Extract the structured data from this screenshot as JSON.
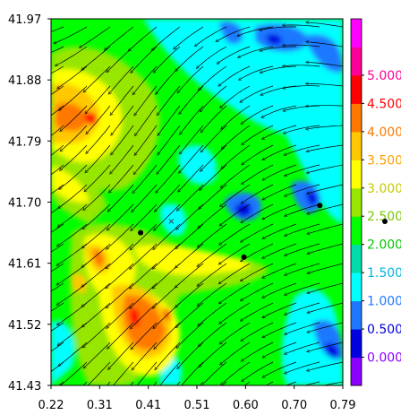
{
  "chart_data": {
    "type": "heatmap",
    "subtype": "filled-contour-with-streamlines",
    "title": "",
    "xlabel": "",
    "ylabel": "",
    "xlim": [
      0.22,
      0.79
    ],
    "ylim": [
      41.43,
      41.97
    ],
    "x_ticks": [
      "0.22",
      "0.31",
      "0.41",
      "0.51",
      "0.60",
      "0.70",
      "0.79"
    ],
    "y_ticks": [
      "41.43",
      "41.52",
      "41.61",
      "41.70",
      "41.79",
      "41.88",
      "41.97"
    ],
    "colorbar": {
      "levels": [
        "0.000",
        "0.500",
        "1.000",
        "1.500",
        "2.000",
        "2.500",
        "3.000",
        "3.500",
        "4.000",
        "4.500",
        "5.000"
      ],
      "level_colors": [
        "#0000e0",
        "#1e78ff",
        "#00ffff",
        "#00dcaa",
        "#00ff00",
        "#96e600",
        "#ffff00",
        "#ffc800",
        "#ff7800",
        "#ff0000",
        "#ff0096"
      ],
      "bottom_color": "#8c00ff",
      "top_color": "#ff00ff",
      "label_colors": [
        "#8c00ff",
        "#0000e0",
        "#1e78ff",
        "#00b4dc",
        "#00c800",
        "#78c800",
        "#c8c800",
        "#ffa000",
        "#ff7800",
        "#ff0000",
        "#ff0096"
      ]
    },
    "markers": [
      {
        "x": 0.395,
        "y": 41.655
      },
      {
        "x": 0.597,
        "y": 41.619
      },
      {
        "x": 0.745,
        "y": 41.695
      }
    ],
    "grid": false,
    "legend": "colorbar right"
  }
}
